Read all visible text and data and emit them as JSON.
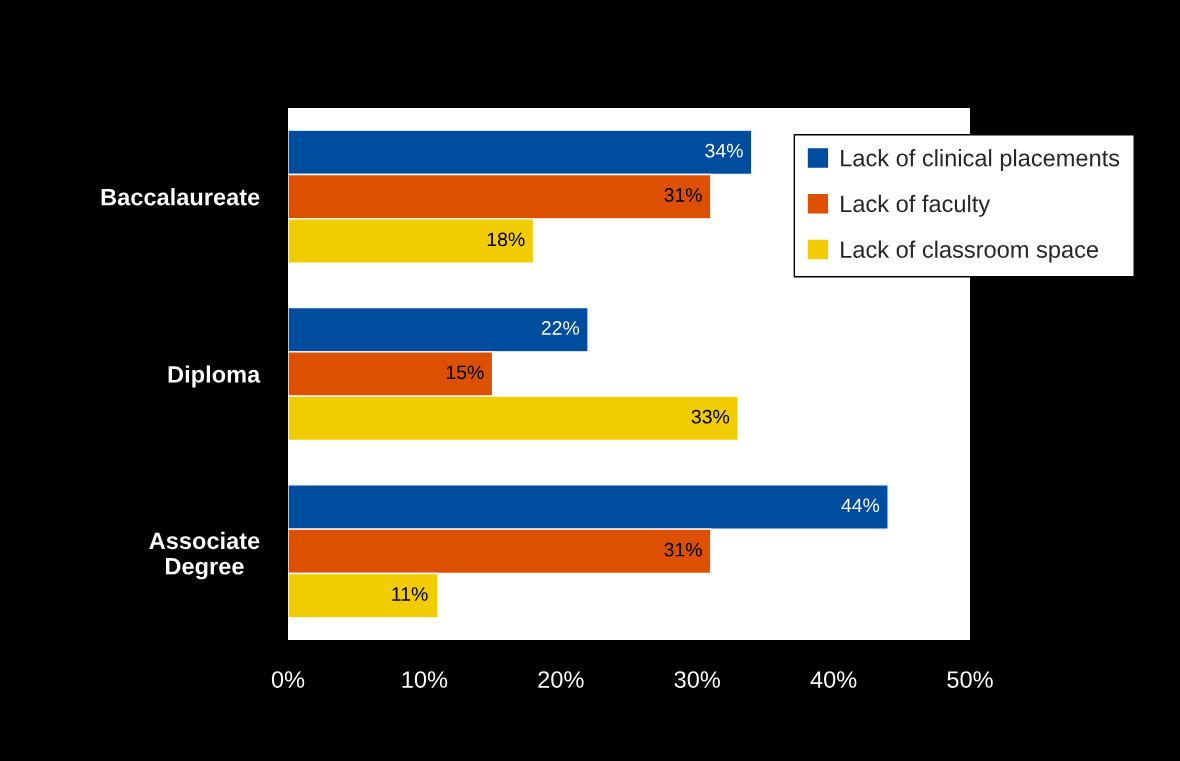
{
  "chart_data": {
    "type": "bar",
    "orientation": "horizontal",
    "categories": [
      "Baccalaureate",
      "Diploma",
      "Associate\nDegree"
    ],
    "series": [
      {
        "name": "Lack of clinical placements",
        "color": "#004c9e",
        "values": [
          34,
          22,
          44
        ],
        "value_labels": [
          "34%",
          "22%",
          "44%"
        ]
      },
      {
        "name": "Lack of faculty",
        "color": "#dd5000",
        "values": [
          31,
          15,
          31
        ],
        "value_labels": [
          "31%",
          "15%",
          "31%"
        ]
      },
      {
        "name": "Lack of classroom space",
        "color": "#f0cc00",
        "values": [
          18,
          33,
          11
        ],
        "value_labels": [
          "18%",
          "33%",
          "11%"
        ]
      }
    ],
    "xlim": [
      0,
      50
    ],
    "xticks": [
      {
        "value": 0,
        "label": "0%"
      },
      {
        "value": 10,
        "label": "10%"
      },
      {
        "value": 20,
        "label": "20%"
      },
      {
        "value": 30,
        "label": "30%"
      },
      {
        "value": 40,
        "label": "40%"
      },
      {
        "value": 50,
        "label": "50%"
      }
    ],
    "grid": false,
    "legend": "top right"
  }
}
